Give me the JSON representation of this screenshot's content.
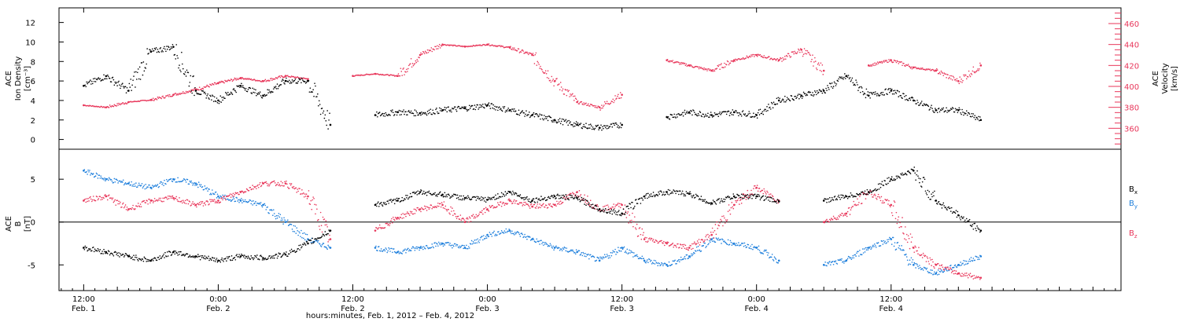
{
  "colors": {
    "black": "#000000",
    "red": "#e8365a",
    "blue": "#1e7fdc",
    "axis": "#000000"
  },
  "chart_data": [
    {
      "type": "scatter",
      "panel": "top",
      "left_axis_label": [
        "ACE",
        "Ion Density",
        "[cm⁻³]"
      ],
      "right_axis_label": [
        "ACE",
        "Velocity",
        "[km/s]"
      ],
      "left_ylim": [
        -1,
        13.5
      ],
      "left_ticks": [
        0,
        2,
        4,
        6,
        8,
        10,
        12
      ],
      "left_tick_labels": [
        "0",
        "2",
        "4",
        "6",
        "8",
        "10",
        "12"
      ],
      "right_ylim": [
        340,
        475
      ],
      "right_ticks": [
        360,
        380,
        400,
        420,
        440,
        460
      ],
      "right_tick_labels": [
        "360",
        "380",
        "400",
        "420",
        "440",
        "460"
      ],
      "series": [
        {
          "color": "#000000",
          "axis": "left",
          "x": [
            0,
            2,
            4,
            6,
            8,
            10,
            12,
            14,
            16,
            18,
            20,
            22,
            24,
            26,
            28,
            30,
            32,
            34,
            36,
            38,
            40,
            42,
            44,
            46,
            48,
            50,
            52,
            54,
            56,
            58,
            60,
            62,
            64,
            66,
            68,
            70,
            72,
            74,
            76,
            78,
            80
          ],
          "values": [
            5.5,
            6.5,
            5,
            9,
            9.5,
            5,
            4,
            5.5,
            4.5,
            6,
            6,
            1.5,
            null,
            2.5,
            2.8,
            2.7,
            3,
            3.2,
            3.5,
            3,
            2.5,
            2,
            1.5,
            1.2,
            1.5,
            null,
            2.3,
            2.8,
            2.5,
            2.8,
            2.5,
            4,
            4.5,
            5,
            6.5,
            4.5,
            5,
            4,
            3,
            3,
            2
          ]
        },
        {
          "color": "#e8365a",
          "axis": "right",
          "x": [
            0,
            2,
            4,
            6,
            8,
            10,
            12,
            14,
            16,
            18,
            20,
            22,
            24,
            26,
            28,
            30,
            32,
            34,
            36,
            38,
            40,
            42,
            44,
            46,
            48,
            50,
            52,
            54,
            56,
            58,
            60,
            62,
            64,
            66,
            68,
            70,
            72,
            74,
            76,
            78,
            80
          ],
          "values": [
            382,
            380,
            385,
            387,
            392,
            397,
            403,
            408,
            405,
            410,
            407,
            null,
            410,
            412,
            410,
            430,
            440,
            438,
            440,
            437,
            430,
            405,
            385,
            380,
            392,
            null,
            425,
            420,
            415,
            425,
            430,
            425,
            435,
            415,
            null,
            420,
            425,
            418,
            415,
            405,
            420
          ]
        }
      ]
    },
    {
      "type": "scatter",
      "panel": "bottom",
      "left_axis_label": [
        "ACE",
        "B",
        "[nT]"
      ],
      "ylim": [
        -8,
        8.5
      ],
      "yticks": [
        -5,
        0,
        5
      ],
      "ytick_labels": [
        "-5",
        "0",
        "5"
      ],
      "series": [
        {
          "name_parts": [
            "B",
            "x"
          ],
          "color": "#000000",
          "x": [
            0,
            2,
            4,
            6,
            8,
            10,
            12,
            14,
            16,
            18,
            20,
            22,
            24,
            26,
            28,
            30,
            32,
            34,
            36,
            38,
            40,
            42,
            44,
            46,
            48,
            50,
            52,
            54,
            56,
            58,
            60,
            62,
            64,
            66,
            68,
            70,
            72,
            74,
            76,
            78,
            80
          ],
          "values": [
            -3,
            -3.5,
            -4,
            -4.5,
            -3.5,
            -4,
            -4.5,
            -4,
            -4.2,
            -3.8,
            -2.5,
            -1,
            null,
            2,
            2.5,
            3.5,
            3.2,
            2.8,
            2.6,
            3.5,
            2.5,
            3,
            2.8,
            1.5,
            1,
            3,
            3.5,
            3.3,
            2.2,
            3,
            3,
            2.4,
            null,
            2.5,
            3,
            3.5,
            5,
            6,
            2.5,
            0.8,
            -1
          ]
        },
        {
          "name_parts": [
            "B",
            "y"
          ],
          "color": "#1e7fdc",
          "x": [
            0,
            2,
            4,
            6,
            8,
            10,
            12,
            14,
            16,
            18,
            20,
            22,
            24,
            26,
            28,
            30,
            32,
            34,
            36,
            38,
            40,
            42,
            44,
            46,
            48,
            50,
            52,
            54,
            56,
            58,
            60,
            62,
            64,
            66,
            68,
            70,
            72,
            74,
            76,
            78,
            80
          ],
          "values": [
            6,
            5,
            4.5,
            4,
            5,
            4.5,
            3,
            2.5,
            2,
            0,
            -2,
            -3,
            null,
            -3,
            -3.5,
            -3,
            -2.5,
            -3,
            -1.5,
            -1,
            -2,
            -3,
            -3.5,
            -4.5,
            -3,
            -4.5,
            -5,
            -4,
            -2,
            -2.5,
            -3,
            -4.5,
            null,
            -5,
            -4.5,
            -3,
            -2,
            -5,
            -6,
            -5,
            -4
          ]
        },
        {
          "name_parts": [
            "B",
            "z"
          ],
          "color": "#e8365a",
          "x": [
            0,
            2,
            4,
            6,
            8,
            10,
            12,
            14,
            16,
            18,
            20,
            22,
            24,
            26,
            28,
            30,
            32,
            34,
            36,
            38,
            40,
            42,
            44,
            46,
            48,
            50,
            52,
            54,
            56,
            58,
            60,
            62,
            64,
            66,
            68,
            70,
            72,
            74,
            76,
            78,
            80
          ],
          "values": [
            2.5,
            3,
            1.5,
            2.5,
            2.8,
            2,
            2.5,
            3.5,
            4.5,
            4.5,
            3,
            -2,
            null,
            -1,
            0.5,
            1.5,
            2,
            0,
            1.5,
            2.5,
            1.8,
            2,
            3.5,
            1.5,
            2,
            -2,
            -2.5,
            -3,
            -1.5,
            2,
            4,
            2.5,
            null,
            0,
            1,
            3.5,
            2,
            -3,
            -5,
            -6,
            -6.5
          ]
        }
      ]
    }
  ],
  "x_axis": {
    "range_hours": [
      -2.2,
      92.5
    ],
    "ticks": [
      {
        "hour": 0,
        "time": "12:00",
        "day": "Feb. 1"
      },
      {
        "hour": 12,
        "time": "0:00",
        "day": "Feb. 2"
      },
      {
        "hour": 24,
        "time": "12:00",
        "day": "Feb. 2"
      },
      {
        "hour": 36,
        "time": "0:00",
        "day": "Feb. 3"
      },
      {
        "hour": 48,
        "time": "12:00",
        "day": "Feb. 3"
      },
      {
        "hour": 60,
        "time": "0:00",
        "day": "Feb. 4"
      },
      {
        "hour": 72,
        "time": "12:00",
        "day": "Feb. 4"
      }
    ],
    "title": "hours:minutes, Feb.  1, 2012 – Feb.  4, 2012"
  }
}
